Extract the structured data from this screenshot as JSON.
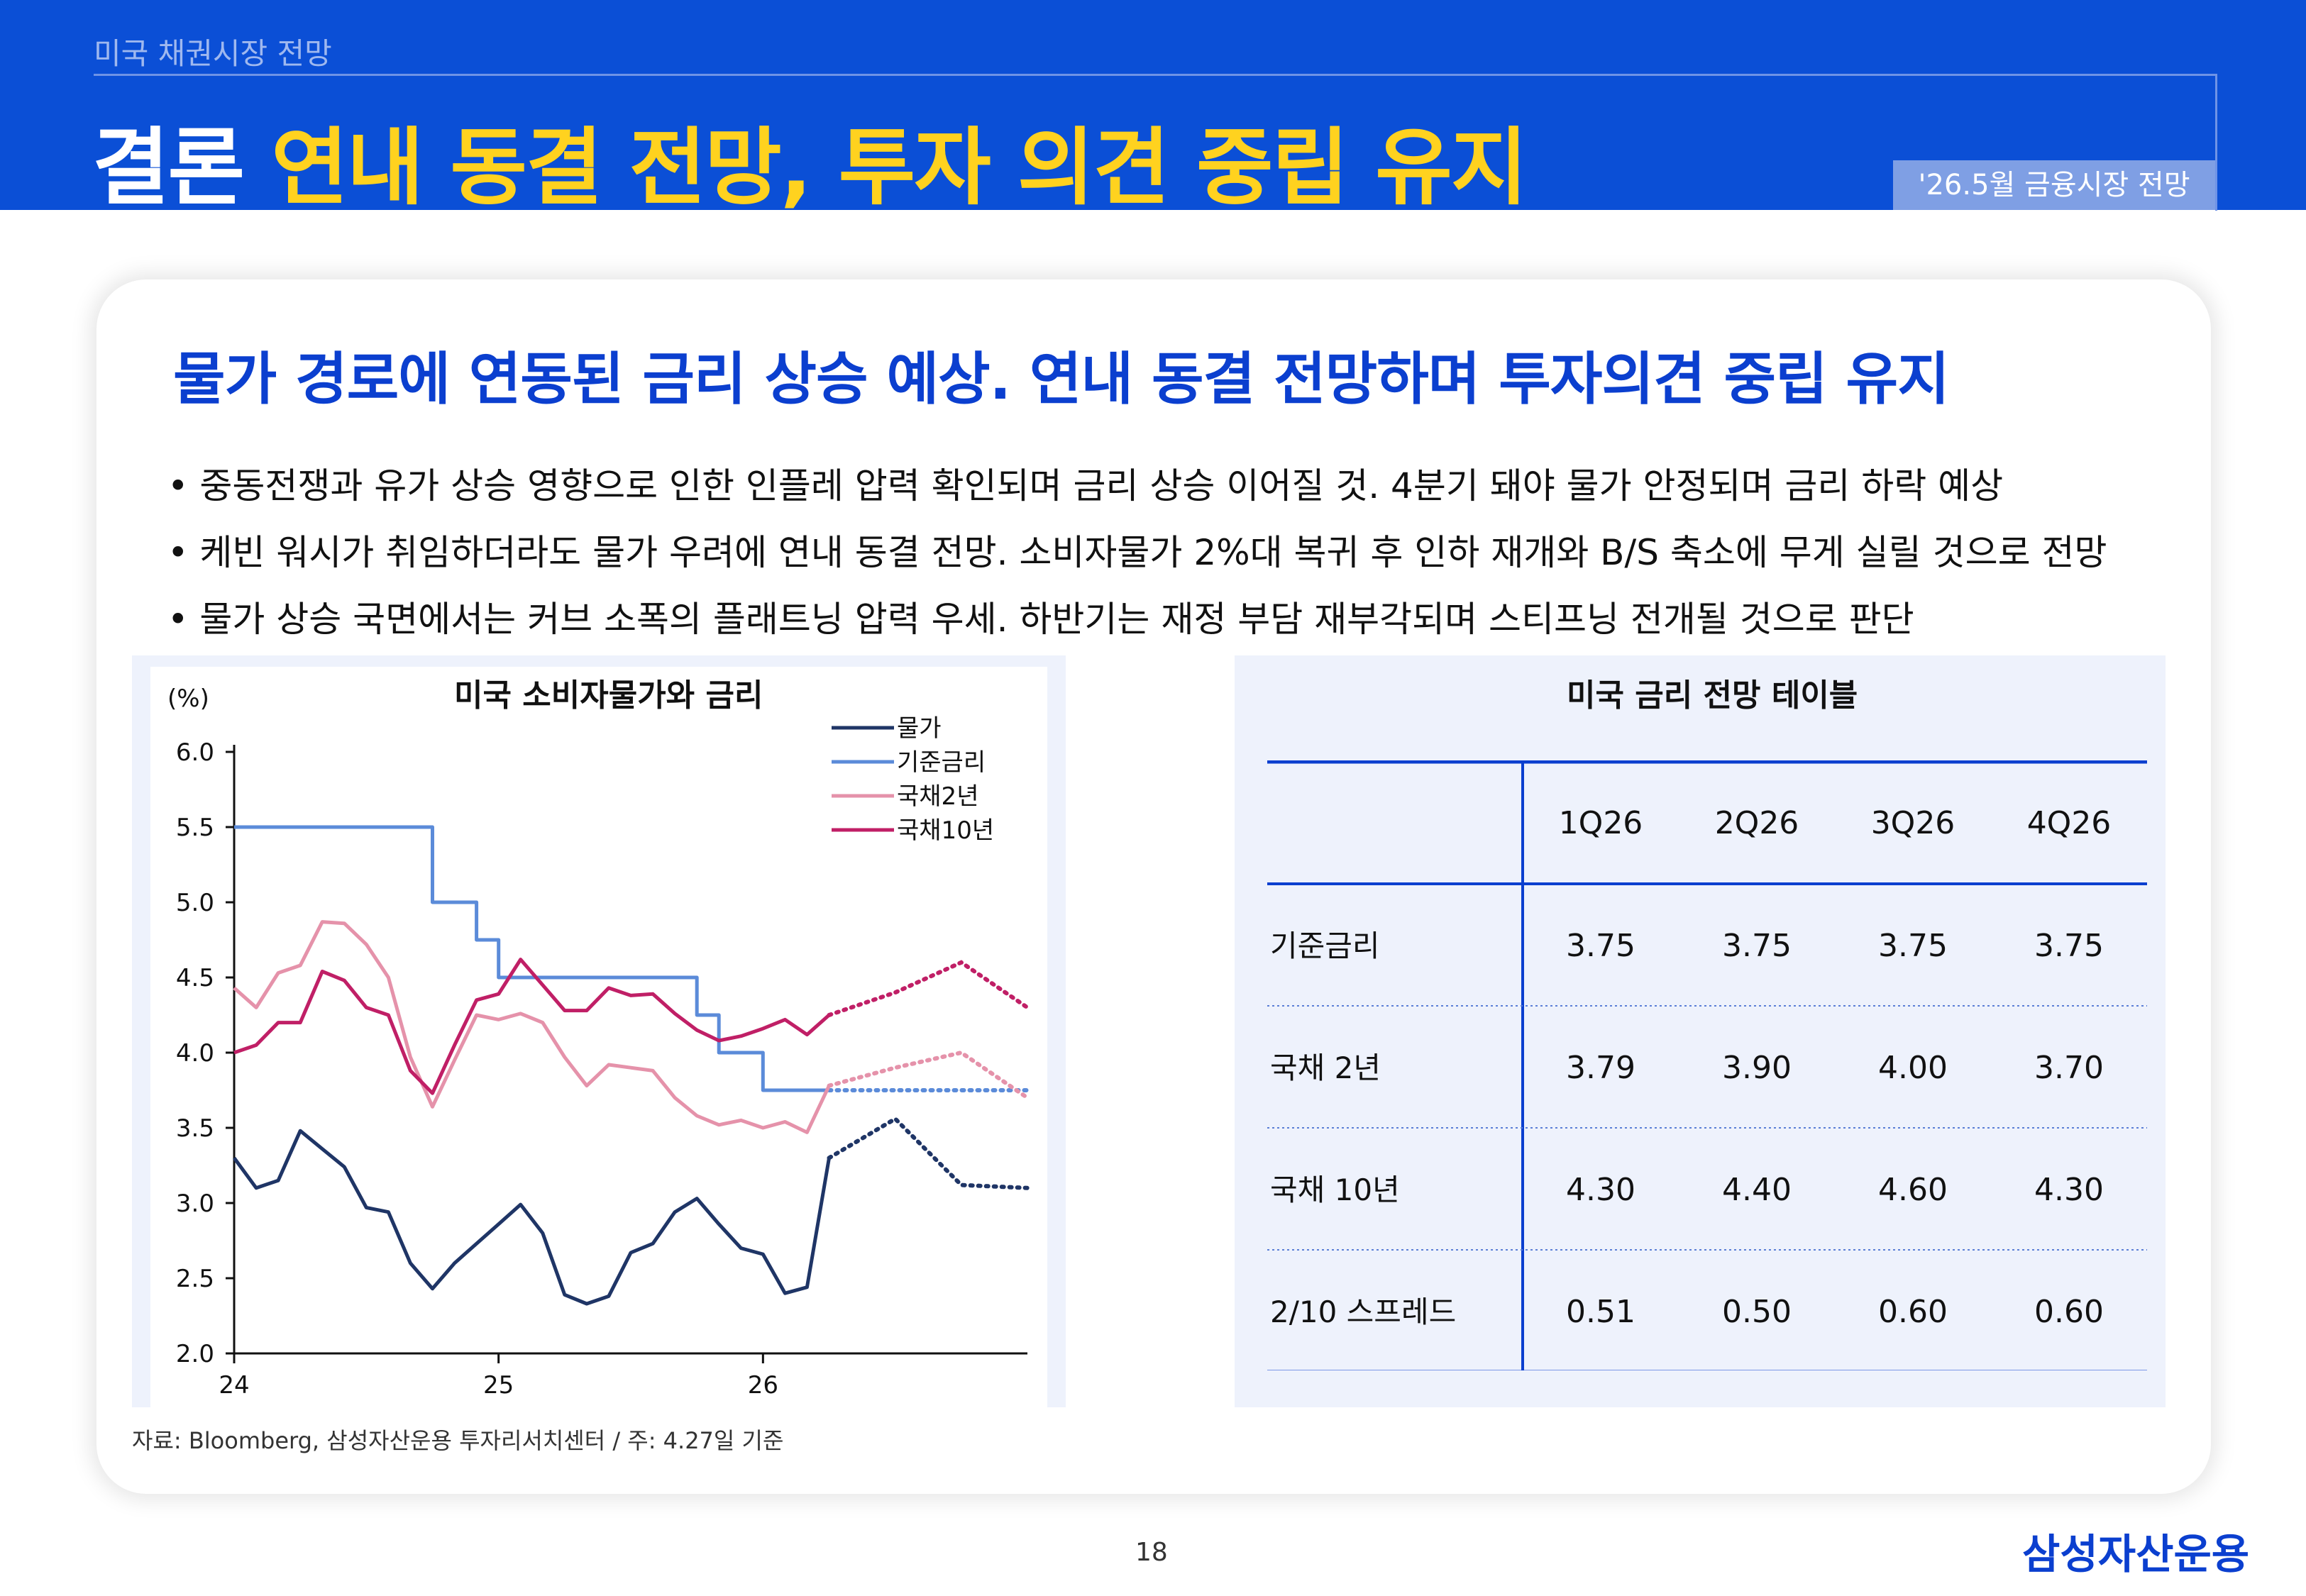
{
  "header": {
    "section": "미국 채권시장 전망",
    "title_prefix": "결론",
    "title_main": "연내 동결 전망, 투자 의견 중립 유지",
    "badge": "'26.5월 금융시장 전망"
  },
  "headline": "물가 경로에 연동된 금리 상승 예상. 연내 동결 전망하며 투자의견 중립 유지",
  "bullets": [
    "중동전쟁과 유가 상승 영향으로 인한 인플레 압력 확인되며 금리 상승 이어질 것. 4분기 돼야 물가 안정되며 금리 하락 예상",
    "케빈 워시가 취임하더라도 물가 우려에 연내 동결 전망. 소비자물가 2%대 복귀 후 인하 재개와 B/S 축소에 무게 실릴 것으로 전망",
    "물가 상승 국면에서는 커브 소폭의 플래트닝 압력 우세. 하반기는 재정 부담 재부각되며 스티프닝 전개될 것으로 판단"
  ],
  "colors": {
    "brand_blue": "#0b4fd6",
    "title_yellow": "#ffd21f",
    "cpi": "#1f3566",
    "fed_rate": "#5b8bd9",
    "ust2y": "#e592aa",
    "ust10y": "#c01f66"
  },
  "chart_data": {
    "type": "line",
    "title": "미국 소비자물가와 금리",
    "ylabel": "(%)",
    "ylim": [
      2.0,
      6.0
    ],
    "yticks": [
      "6.0",
      "5.5",
      "5.0",
      "4.5",
      "4.0",
      "3.5",
      "3.0",
      "2.5",
      "2.0"
    ],
    "xlim": [
      0,
      36
    ],
    "xticks": [
      {
        "label": "24",
        "x": 0
      },
      {
        "label": "25",
        "x": 12
      },
      {
        "label": "26",
        "x": 24
      }
    ],
    "legend": "top-right",
    "series": [
      {
        "name": "물가",
        "color": "#1f3566",
        "actual": [
          [
            0,
            3.3
          ],
          [
            1,
            3.1
          ],
          [
            2,
            3.15
          ],
          [
            3,
            3.48
          ],
          [
            4,
            3.36
          ],
          [
            5,
            3.24
          ],
          [
            6,
            2.97
          ],
          [
            7,
            2.94
          ],
          [
            8,
            2.6
          ],
          [
            9,
            2.43
          ],
          [
            10,
            2.6
          ],
          [
            11,
            2.73
          ],
          [
            12,
            2.86
          ],
          [
            13,
            2.99
          ],
          [
            14,
            2.8
          ],
          [
            15,
            2.39
          ],
          [
            16,
            2.33
          ],
          [
            17,
            2.38
          ],
          [
            18,
            2.67
          ],
          [
            19,
            2.73
          ],
          [
            20,
            2.94
          ],
          [
            21,
            3.03
          ],
          [
            22,
            2.86
          ],
          [
            23,
            2.7
          ],
          [
            24,
            2.66
          ],
          [
            25,
            2.4
          ],
          [
            26,
            2.44
          ],
          [
            27,
            3.3
          ]
        ],
        "forecast": [
          [
            27,
            3.3
          ],
          [
            30,
            3.56
          ],
          [
            33,
            3.12
          ],
          [
            36,
            3.1
          ]
        ]
      },
      {
        "name": "기준금리",
        "color": "#5b8bd9",
        "step": true,
        "actual": [
          [
            0,
            5.5
          ],
          [
            9,
            5.5
          ],
          [
            9,
            5.0
          ],
          [
            11,
            5.0
          ],
          [
            11,
            4.75
          ],
          [
            12,
            4.75
          ],
          [
            12,
            4.5
          ],
          [
            21,
            4.5
          ],
          [
            21,
            4.25
          ],
          [
            22,
            4.25
          ],
          [
            22,
            4.0
          ],
          [
            24,
            4.0
          ],
          [
            24,
            3.75
          ],
          [
            27,
            3.75
          ]
        ],
        "forecast": [
          [
            27,
            3.75
          ],
          [
            36,
            3.75
          ]
        ]
      },
      {
        "name": "국채2년",
        "color": "#e592aa",
        "actual": [
          [
            0,
            4.43
          ],
          [
            1,
            4.3
          ],
          [
            2,
            4.53
          ],
          [
            3,
            4.58
          ],
          [
            4,
            4.87
          ],
          [
            5,
            4.86
          ],
          [
            6,
            4.72
          ],
          [
            7,
            4.5
          ],
          [
            8,
            3.97
          ],
          [
            9,
            3.64
          ],
          [
            10,
            3.95
          ],
          [
            11,
            4.25
          ],
          [
            12,
            4.22
          ],
          [
            13,
            4.26
          ],
          [
            14,
            4.2
          ],
          [
            15,
            3.97
          ],
          [
            16,
            3.78
          ],
          [
            17,
            3.92
          ],
          [
            18,
            3.9
          ],
          [
            19,
            3.88
          ],
          [
            20,
            3.7
          ],
          [
            21,
            3.58
          ],
          [
            22,
            3.52
          ],
          [
            23,
            3.55
          ],
          [
            24,
            3.5
          ],
          [
            25,
            3.54
          ],
          [
            26,
            3.47
          ],
          [
            27,
            3.78
          ]
        ],
        "forecast": [
          [
            27,
            3.78
          ],
          [
            30,
            3.9
          ],
          [
            33,
            4.0
          ],
          [
            36,
            3.7
          ]
        ]
      },
      {
        "name": "국채10년",
        "color": "#c01f66",
        "actual": [
          [
            0,
            4.0
          ],
          [
            1,
            4.05
          ],
          [
            2,
            4.2
          ],
          [
            3,
            4.2
          ],
          [
            4,
            4.54
          ],
          [
            5,
            4.48
          ],
          [
            6,
            4.3
          ],
          [
            7,
            4.25
          ],
          [
            8,
            3.88
          ],
          [
            9,
            3.73
          ],
          [
            10,
            4.05
          ],
          [
            11,
            4.35
          ],
          [
            12,
            4.39
          ],
          [
            13,
            4.62
          ],
          [
            14,
            4.45
          ],
          [
            15,
            4.28
          ],
          [
            16,
            4.28
          ],
          [
            17,
            4.43
          ],
          [
            18,
            4.38
          ],
          [
            19,
            4.39
          ],
          [
            20,
            4.26
          ],
          [
            21,
            4.15
          ],
          [
            22,
            4.08
          ],
          [
            23,
            4.11
          ],
          [
            24,
            4.16
          ],
          [
            25,
            4.22
          ],
          [
            26,
            4.12
          ],
          [
            27,
            4.25
          ]
        ],
        "forecast": [
          [
            27,
            4.25
          ],
          [
            30,
            4.4
          ],
          [
            33,
            4.6
          ],
          [
            36,
            4.3
          ]
        ]
      }
    ]
  },
  "table": {
    "title": "미국 금리 전망 테이블",
    "columns": [
      "1Q26",
      "2Q26",
      "3Q26",
      "4Q26"
    ],
    "rows": [
      {
        "label": "기준금리",
        "values": [
          "3.75",
          "3.75",
          "3.75",
          "3.75"
        ]
      },
      {
        "label": "국채 2년",
        "values": [
          "3.79",
          "3.90",
          "4.00",
          "3.70"
        ]
      },
      {
        "label": "국채 10년",
        "values": [
          "4.30",
          "4.40",
          "4.60",
          "4.30"
        ]
      },
      {
        "label": "2/10 스프레드",
        "values": [
          "0.51",
          "0.50",
          "0.60",
          "0.60"
        ]
      }
    ]
  },
  "source": "자료: Bloomberg, 삼성자산운용 투자리서치센터 / 주: 4.27일 기준",
  "page_number": "18",
  "logo": "삼성자산운용"
}
